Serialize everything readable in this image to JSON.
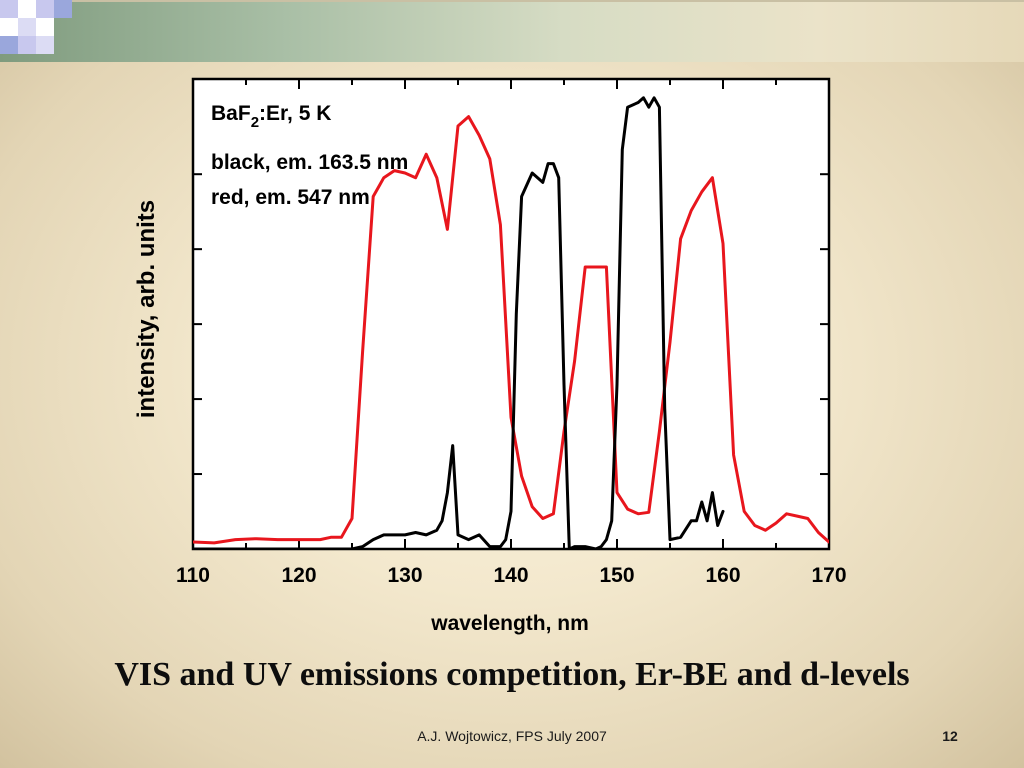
{
  "slide": {
    "title": "VIS and UV emissions competition, Er-BE and d-levels",
    "credit": "A.J. Wojtowicz, FPS July 2007",
    "number": "12"
  },
  "chart_data": {
    "type": "line",
    "xlabel": "wavelength, nm",
    "ylabel": "intensity, arb. units",
    "xlim": [
      110,
      170
    ],
    "ylim": [
      0,
      1
    ],
    "x_ticks": [
      110,
      120,
      130,
      140,
      150,
      160,
      170
    ],
    "annotations": {
      "sample_main": "BaF",
      "sample_sub": "2",
      "sample_rest": ":Er, 5 K",
      "black_label": "black, em. 163.5 nm",
      "red_label": "red, em. 547 nm"
    },
    "colors": {
      "black": "#000000",
      "red": "#e8161d"
    },
    "series": [
      {
        "color": "red",
        "x": [
          110,
          112,
          114,
          116,
          118,
          120,
          122,
          123,
          124,
          125,
          126,
          127,
          128,
          129,
          130,
          131,
          132,
          133,
          134,
          135,
          136,
          137,
          138,
          139,
          140,
          141,
          142,
          143,
          144,
          145,
          146,
          147,
          148,
          149,
          150,
          151,
          152,
          153,
          154,
          155,
          156,
          157,
          158,
          159,
          160,
          161,
          162,
          163,
          164,
          165,
          166,
          167,
          168,
          169,
          170
        ],
        "y": [
          0.015,
          0.013,
          0.02,
          0.022,
          0.02,
          0.02,
          0.02,
          0.025,
          0.025,
          0.065,
          0.42,
          0.75,
          0.79,
          0.805,
          0.8,
          0.79,
          0.84,
          0.79,
          0.68,
          0.9,
          0.92,
          0.88,
          0.83,
          0.69,
          0.28,
          0.155,
          0.09,
          0.065,
          0.075,
          0.25,
          0.4,
          0.6,
          0.6,
          0.6,
          0.12,
          0.085,
          0.075,
          0.078,
          0.25,
          0.44,
          0.66,
          0.72,
          0.76,
          0.79,
          0.65,
          0.2,
          0.08,
          0.05,
          0.04,
          0.055,
          0.075,
          0.07,
          0.065,
          0.035,
          0.015
        ]
      },
      {
        "color": "black",
        "x": [
          110,
          116,
          122,
          125,
          126,
          127,
          128,
          129,
          130,
          131,
          132,
          133,
          133.5,
          134,
          134.5,
          135,
          136,
          137,
          138,
          139,
          139.5,
          140,
          140.5,
          141,
          142,
          143,
          143.5,
          144,
          144.5,
          145,
          145.5,
          146,
          147,
          148,
          148.5,
          149,
          149.5,
          150,
          150.5,
          151,
          152,
          152.5,
          153,
          153.5,
          154,
          154.5,
          155,
          156,
          157,
          157.5,
          158,
          158.5,
          159,
          159.5,
          160
        ],
        "y": [
          0.0,
          0.0,
          0.0,
          0.0,
          0.005,
          0.02,
          0.03,
          0.03,
          0.03,
          0.035,
          0.03,
          0.04,
          0.06,
          0.12,
          0.22,
          0.03,
          0.02,
          0.03,
          0.005,
          0.005,
          0.02,
          0.08,
          0.5,
          0.75,
          0.8,
          0.78,
          0.82,
          0.82,
          0.79,
          0.35,
          0.0,
          0.005,
          0.005,
          0.0,
          0.005,
          0.02,
          0.06,
          0.35,
          0.85,
          0.94,
          0.95,
          0.96,
          0.94,
          0.96,
          0.94,
          0.3,
          0.02,
          0.025,
          0.06,
          0.06,
          0.1,
          0.06,
          0.12,
          0.05,
          0.08
        ]
      }
    ]
  }
}
